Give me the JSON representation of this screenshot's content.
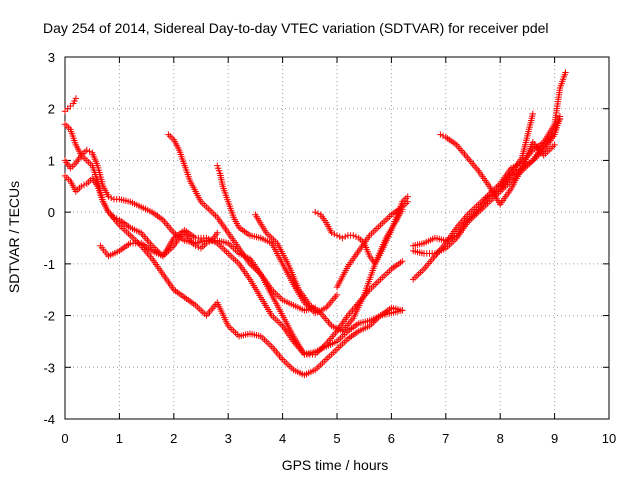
{
  "chart_data": {
    "type": "scatter",
    "title": "Day 254 of 2014, Sidereal Day-to-day VTEC variation (SDTVAR) for receiver pdel",
    "xlabel": "GPS time / hours",
    "ylabel": "SDTVAR / TECUs",
    "xlim": [
      0,
      10
    ],
    "ylim": [
      -4,
      3
    ],
    "xticks": [
      "0",
      "1",
      "2",
      "3",
      "4",
      "5",
      "6",
      "7",
      "8",
      "9",
      "10"
    ],
    "yticks": [
      "-4",
      "-3",
      "-2",
      "-1",
      "0",
      "1",
      "2",
      "3"
    ],
    "grid": true,
    "marker": "plus",
    "color": "#ff0000",
    "series": [
      {
        "x": [
          0.0,
          0.05,
          0.1,
          0.15,
          0.2
        ],
        "y": [
          1.95,
          2.0,
          2.05,
          2.1,
          2.2
        ]
      },
      {
        "x": [
          0.0,
          0.1,
          0.2,
          0.3,
          0.4,
          0.5,
          0.6,
          0.7,
          0.8,
          0.9,
          1.0,
          1.2,
          1.4,
          1.6,
          1.8,
          2.0,
          2.2,
          2.4,
          2.6,
          2.8,
          3.0,
          3.2,
          3.4,
          3.6,
          3.8,
          4.0,
          4.2,
          4.4,
          4.6,
          4.8,
          5.0,
          5.2,
          5.4,
          5.6,
          5.8,
          6.0,
          6.2
        ],
        "y": [
          1.7,
          1.6,
          1.3,
          1.1,
          1.2,
          1.15,
          0.9,
          0.5,
          0.3,
          0.25,
          0.25,
          0.2,
          0.1,
          0.0,
          -0.15,
          -0.4,
          -0.55,
          -0.6,
          -0.55,
          -0.55,
          -0.6,
          -0.8,
          -0.9,
          -1.2,
          -1.6,
          -2.0,
          -2.4,
          -2.75,
          -2.7,
          -2.6,
          -2.5,
          -2.3,
          -2.15,
          -2.1,
          -2.0,
          -1.95,
          -1.9
        ]
      },
      {
        "x": [
          0.0,
          0.1,
          0.2,
          0.3,
          0.4,
          0.5,
          0.6,
          0.7,
          0.8,
          0.9,
          1.0,
          1.2,
          1.4,
          1.6,
          1.8,
          2.0,
          2.2,
          2.4,
          2.6,
          2.8,
          3.0,
          3.2,
          3.4,
          3.6,
          3.8,
          4.0,
          4.2,
          4.4,
          4.6,
          4.8,
          5.0,
          5.2,
          5.4,
          5.6,
          5.8,
          6.0,
          6.2
        ],
        "y": [
          1.0,
          0.85,
          0.95,
          1.1,
          1.0,
          0.9,
          0.6,
          0.2,
          0.0,
          -0.1,
          -0.15,
          -0.3,
          -0.4,
          -0.65,
          -0.85,
          -0.5,
          -0.35,
          -0.5,
          -0.5,
          -0.6,
          -0.8,
          -1.0,
          -1.3,
          -1.65,
          -2.0,
          -2.2,
          -2.5,
          -2.75,
          -2.75,
          -2.55,
          -2.3,
          -2.0,
          -1.75,
          -1.5,
          -1.3,
          -1.1,
          -0.95
        ]
      },
      {
        "x": [
          0.0,
          0.1,
          0.2,
          0.3,
          0.4,
          0.5,
          0.6,
          0.7,
          0.8,
          1.0,
          1.2,
          1.4,
          1.6,
          1.8,
          2.0,
          2.2,
          2.4,
          2.6,
          2.8,
          3.0,
          3.2,
          3.4,
          3.6,
          3.8,
          4.0,
          4.2,
          4.4,
          4.6,
          4.8,
          5.0,
          5.2,
          5.4,
          5.6,
          5.8,
          6.0,
          6.2
        ],
        "y": [
          0.7,
          0.6,
          0.4,
          0.5,
          0.55,
          0.65,
          0.5,
          0.2,
          0.0,
          -0.25,
          -0.45,
          -0.65,
          -0.9,
          -1.2,
          -1.5,
          -1.65,
          -1.8,
          -2.0,
          -1.75,
          -2.2,
          -2.4,
          -2.35,
          -2.4,
          -2.6,
          -2.85,
          -3.05,
          -3.15,
          -3.05,
          -2.85,
          -2.65,
          -2.45,
          -2.3,
          -2.2,
          -2.0,
          -1.85,
          -1.9
        ]
      },
      {
        "x": [
          0.65,
          0.8,
          1.0,
          1.2,
          1.4,
          1.6,
          1.8,
          2.0,
          2.1,
          2.2,
          2.3,
          2.4,
          2.5,
          2.6,
          2.7,
          2.8
        ],
        "y": [
          -0.65,
          -0.85,
          -0.75,
          -0.6,
          -0.6,
          -0.75,
          -0.85,
          -0.65,
          -0.5,
          -0.4,
          -0.55,
          -0.65,
          -0.7,
          -0.6,
          -0.55,
          -0.4
        ]
      },
      {
        "x": [
          1.9,
          2.0,
          2.1,
          2.2,
          2.3,
          2.4,
          2.5,
          2.6,
          2.7,
          2.8,
          3.0,
          3.2,
          3.4,
          3.6,
          3.8,
          4.0,
          4.2,
          4.4,
          4.6
        ],
        "y": [
          1.5,
          1.4,
          1.2,
          0.9,
          0.6,
          0.4,
          0.2,
          0.1,
          0.0,
          -0.1,
          -0.4,
          -0.7,
          -1.0,
          -1.2,
          -1.5,
          -1.7,
          -1.8,
          -1.9,
          -1.85
        ]
      },
      {
        "x": [
          2.8,
          2.85,
          2.9,
          3.0,
          3.1,
          3.2,
          3.4,
          3.6,
          3.8,
          4.0,
          4.2,
          4.4,
          4.6,
          4.8,
          5.0
        ],
        "y": [
          0.9,
          0.75,
          0.5,
          0.2,
          -0.1,
          -0.3,
          -0.45,
          -0.5,
          -0.6,
          -1.0,
          -1.4,
          -1.75,
          -1.95,
          -1.85,
          -1.6
        ]
      },
      {
        "x": [
          3.5,
          3.7,
          3.9,
          4.1,
          4.3,
          4.5,
          4.7,
          4.9,
          5.1,
          5.3,
          5.5,
          5.7,
          5.9,
          6.1,
          6.2
        ],
        "y": [
          -0.05,
          -0.4,
          -0.6,
          -1.0,
          -1.5,
          -1.8,
          -1.95,
          -2.2,
          -2.3,
          -2.05,
          -1.6,
          -1.0,
          -0.5,
          -0.15,
          0.05
        ]
      },
      {
        "x": [
          4.6,
          4.7,
          4.8,
          4.9,
          5.0,
          5.1,
          5.2,
          5.3,
          5.4,
          5.5,
          5.6,
          5.7,
          5.8,
          6.0,
          6.2,
          6.3
        ],
        "y": [
          0.0,
          -0.05,
          -0.2,
          -0.4,
          -0.45,
          -0.5,
          -0.45,
          -0.45,
          -0.5,
          -0.6,
          -0.85,
          -1.0,
          -0.8,
          -0.35,
          0.2,
          0.3
        ]
      },
      {
        "x": [
          5.0,
          5.2,
          5.4,
          5.6,
          5.8,
          6.0,
          6.2,
          6.3
        ],
        "y": [
          -1.45,
          -1.05,
          -0.75,
          -0.45,
          -0.25,
          -0.05,
          0.1,
          0.2
        ]
      },
      {
        "x": [
          6.4,
          6.6,
          6.8,
          7.0,
          7.2,
          7.4,
          7.6,
          7.8,
          8.0,
          8.2,
          8.4,
          8.6,
          8.8,
          9.0,
          9.1
        ],
        "y": [
          -0.65,
          -0.6,
          -0.5,
          -0.55,
          -0.45,
          -0.15,
          0.05,
          0.3,
          0.45,
          0.7,
          0.85,
          1.0,
          1.3,
          1.55,
          1.8
        ]
      },
      {
        "x": [
          6.4,
          6.6,
          6.8,
          7.0,
          7.2,
          7.4,
          7.6,
          7.8,
          8.0,
          8.2,
          8.4,
          8.6,
          8.8,
          9.0,
          9.1
        ],
        "y": [
          -0.75,
          -0.8,
          -0.8,
          -0.7,
          -0.5,
          -0.2,
          0.0,
          0.2,
          0.4,
          0.6,
          0.8,
          1.0,
          1.2,
          1.5,
          1.85
        ]
      },
      {
        "x": [
          6.4,
          6.6,
          6.8,
          7.0,
          7.2,
          7.4,
          7.6,
          7.8,
          8.0,
          8.2,
          8.4,
          8.6,
          8.8,
          9.0,
          9.1,
          9.2
        ],
        "y": [
          -1.3,
          -1.1,
          -0.85,
          -0.6,
          -0.3,
          -0.05,
          0.15,
          0.35,
          0.55,
          0.85,
          0.95,
          1.2,
          1.35,
          1.7,
          2.4,
          2.7
        ]
      },
      {
        "x": [
          6.9,
          7.0,
          7.2,
          7.4,
          7.6,
          7.8,
          8.0,
          8.2,
          8.4,
          8.6,
          8.8,
          9.0
        ],
        "y": [
          1.5,
          1.45,
          1.3,
          1.05,
          0.8,
          0.5,
          0.15,
          0.45,
          0.85,
          1.35,
          1.1,
          1.3
        ]
      },
      {
        "x": [
          8.0,
          8.2,
          8.4,
          8.6
        ],
        "y": [
          0.5,
          0.75,
          1.05,
          1.9
        ]
      }
    ]
  }
}
